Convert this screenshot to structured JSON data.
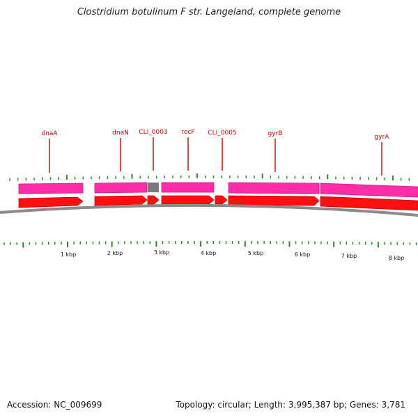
{
  "title": "Clostridium botulinum F str. Langeland, complete genome",
  "footer": {
    "accession": "Accession: NC_009699",
    "summary": "Topology: circular; Length: 3,995,387 bp; Genes: 3,781"
  },
  "colors": {
    "cds_upper": "#ff2ea8",
    "cds_upper_dark": "#d4148a",
    "cds_lower": "#ff1010",
    "cds_lower_dark": "#c80000",
    "gray_feature": "#7a7a7a",
    "backbone": "#8a8a8a",
    "tick": "#2a8a2a",
    "label": "#cc0000"
  },
  "genes": [
    {
      "name": "dnaA"
    },
    {
      "name": "dnaN"
    },
    {
      "name": "CLI_0003"
    },
    {
      "name": "recF"
    },
    {
      "name": "CLI_0005"
    },
    {
      "name": "gyrB"
    },
    {
      "name": "gyrA"
    }
  ],
  "axis_labels": [
    "1 kbp",
    "2 kbp",
    "3 kbp",
    "4 kbp",
    "5 kbp",
    "6 kbp",
    "7 kbp",
    "8 kbp"
  ]
}
